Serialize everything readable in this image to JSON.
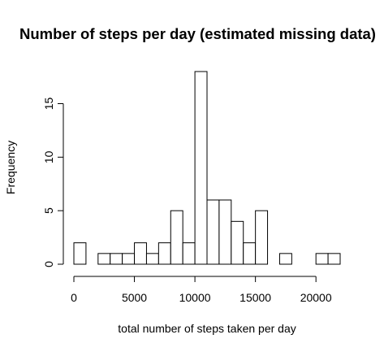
{
  "chart_data": {
    "type": "bar",
    "title": "Number of steps per day (estimated missing data)",
    "xlabel": "total number of steps taken per day",
    "ylabel": "Frequency",
    "bin_width": 1000,
    "bins": [
      {
        "start": 0,
        "end": 1000,
        "count": 2
      },
      {
        "start": 1000,
        "end": 2000,
        "count": 0
      },
      {
        "start": 2000,
        "end": 3000,
        "count": 1
      },
      {
        "start": 3000,
        "end": 4000,
        "count": 1
      },
      {
        "start": 4000,
        "end": 5000,
        "count": 1
      },
      {
        "start": 5000,
        "end": 6000,
        "count": 2
      },
      {
        "start": 6000,
        "end": 7000,
        "count": 1
      },
      {
        "start": 7000,
        "end": 8000,
        "count": 2
      },
      {
        "start": 8000,
        "end": 9000,
        "count": 5
      },
      {
        "start": 9000,
        "end": 10000,
        "count": 2
      },
      {
        "start": 10000,
        "end": 11000,
        "count": 18
      },
      {
        "start": 11000,
        "end": 12000,
        "count": 6
      },
      {
        "start": 12000,
        "end": 13000,
        "count": 6
      },
      {
        "start": 13000,
        "end": 14000,
        "count": 4
      },
      {
        "start": 14000,
        "end": 15000,
        "count": 2
      },
      {
        "start": 15000,
        "end": 16000,
        "count": 5
      },
      {
        "start": 16000,
        "end": 17000,
        "count": 0
      },
      {
        "start": 17000,
        "end": 18000,
        "count": 1
      },
      {
        "start": 18000,
        "end": 19000,
        "count": 0
      },
      {
        "start": 19000,
        "end": 20000,
        "count": 0
      },
      {
        "start": 20000,
        "end": 21000,
        "count": 1
      },
      {
        "start": 21000,
        "end": 22000,
        "count": 1
      }
    ],
    "xlim": [
      0,
      22000
    ],
    "ylim": [
      0,
      18
    ],
    "x_ticks": [
      0,
      5000,
      10000,
      15000,
      20000
    ],
    "x_tick_labels": [
      "0",
      "5000",
      "10000",
      "15000",
      "20000"
    ],
    "y_ticks": [
      0,
      5,
      10,
      15
    ],
    "y_tick_labels": [
      "0",
      "5",
      "10",
      "15"
    ],
    "grid": false,
    "colors": {
      "bar_fill": "#ffffff",
      "bar_stroke": "#000000"
    }
  }
}
